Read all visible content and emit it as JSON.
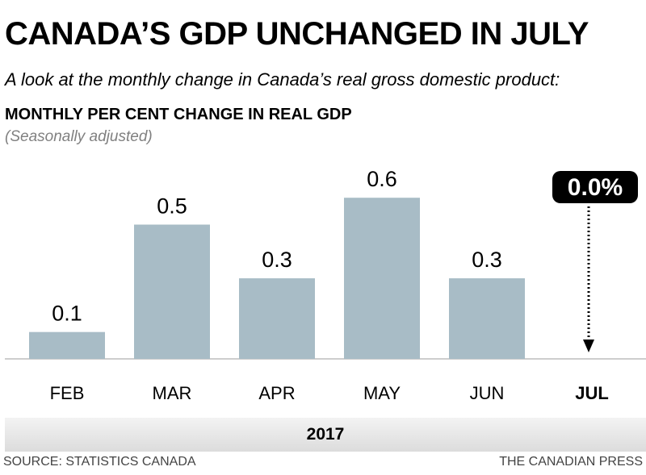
{
  "header": {
    "title": "CANADA’S GDP UNCHANGED IN JULY",
    "subtitle": "A look at the monthly change in Canada’s real gross domestic product:",
    "chart_heading": "MONTHLY PER CENT CHANGE IN REAL GDP",
    "chart_note": "(Seasonally adjusted)"
  },
  "chart_data": {
    "type": "bar",
    "categories": [
      "FEB",
      "MAR",
      "APR",
      "MAY",
      "JUN",
      "JUL"
    ],
    "values": [
      0.1,
      0.5,
      0.3,
      0.6,
      0.3,
      0.0
    ],
    "data_labels": [
      "0.1",
      "0.5",
      "0.3",
      "0.6",
      "0.3",
      "0.0%"
    ],
    "highlight": {
      "category": "JUL",
      "label": "0.0%"
    },
    "ylim": [
      0,
      0.6
    ],
    "grid": false,
    "bar_color": "#a8bcc6",
    "highlight_color": "#000000"
  },
  "footer": {
    "year": "2017",
    "source": "SOURCE: STATISTICS CANADA",
    "credit": "THE CANADIAN PRESS"
  }
}
